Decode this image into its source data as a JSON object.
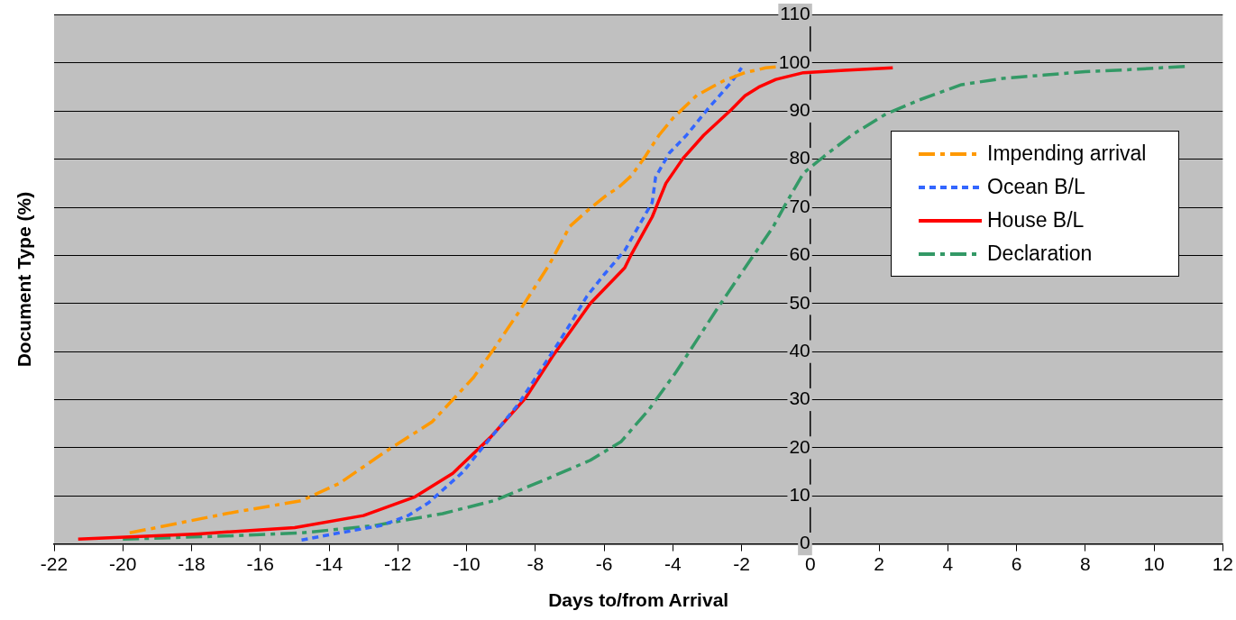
{
  "chart_data": {
    "type": "line",
    "xlabel": "Days to/from Arrival",
    "ylabel": "Document Type (%)",
    "xlim": [
      -22,
      12
    ],
    "xticks": [
      -22,
      -20,
      -18,
      -16,
      -14,
      -12,
      -10,
      -8,
      -6,
      -4,
      -2,
      0,
      2,
      4,
      6,
      8,
      10,
      12
    ],
    "ylim": [
      0,
      110
    ],
    "yticks": [
      0,
      10,
      20,
      30,
      40,
      50,
      60,
      70,
      80,
      90,
      100,
      110
    ],
    "grid": "y",
    "legend": "right",
    "marker": "none",
    "series": [
      {
        "name": "Impending arrival",
        "color": "#ff9900",
        "line_style": "dashed",
        "x": [
          -19.8,
          -18.6,
          -17,
          -14.8,
          -13.7,
          -12.4,
          -11,
          -9.8,
          -9.2,
          -8.5,
          -7.6,
          -7,
          -6.5,
          -5.9,
          -5.6,
          -5.2,
          -4.8,
          -4.4,
          -4,
          -3.3,
          -2.5,
          -1.9,
          -1.3,
          -1
        ],
        "values": [
          2.3,
          4,
          6.3,
          9,
          12.6,
          19,
          25.4,
          34.6,
          40.6,
          48,
          58,
          66,
          69.2,
          72.7,
          74,
          76.6,
          80.6,
          85,
          88.5,
          93.3,
          96.4,
          98,
          99,
          99.2
        ]
      },
      {
        "name": "Ocean B/L",
        "color": "#3366ff",
        "line_style": "dotted",
        "x": [
          -14.8,
          -13.7,
          -12.5,
          -11.7,
          -11.1,
          -10.1,
          -9.7,
          -8.5,
          -7.4,
          -6.9,
          -6.5,
          -6,
          -5.4,
          -5,
          -4.6,
          -4.5,
          -4.1,
          -3.6,
          -3,
          -2.3,
          -2
        ],
        "values": [
          0.8,
          2.3,
          3.8,
          5.9,
          8.6,
          15,
          18.6,
          29,
          41,
          46.7,
          51.5,
          56,
          61,
          66,
          71,
          76.3,
          81.3,
          85,
          90.3,
          96,
          99
        ]
      },
      {
        "name": "House B/L",
        "color": "#ff0000",
        "line_style": "solid",
        "x": [
          -21.3,
          -17.8,
          -15,
          -13,
          -11.5,
          -10.4,
          -9.3,
          -8.3,
          -7.5,
          -6.4,
          -5.4,
          -5.2,
          -4.6,
          -4.2,
          -3.7,
          -3.1,
          -2.3,
          -1.9,
          -1.5,
          -1,
          -0.2,
          1,
          2.4
        ],
        "values": [
          1,
          2.1,
          3.4,
          5.9,
          9.8,
          14.7,
          22.2,
          30.2,
          39,
          50,
          57.4,
          60.3,
          68,
          75,
          80.2,
          85,
          90.3,
          93.2,
          95,
          96.6,
          98,
          98.5,
          99
        ]
      },
      {
        "name": "Declaration",
        "color": "#339966",
        "line_style": "dashed",
        "x": [
          -20,
          -16.8,
          -14.8,
          -12.7,
          -10.7,
          -9.2,
          -7.7,
          -6.4,
          -5.8,
          -5.5,
          -4.7,
          -3.9,
          -2.7,
          -1.7,
          -1.1,
          -0.7,
          -0.2,
          0.4,
          1.2,
          2.2,
          3.2,
          4.4,
          5.6,
          6.8,
          8,
          9.2,
          10.9
        ],
        "values": [
          1,
          1.7,
          2.3,
          3.8,
          6.3,
          9,
          13.4,
          17.4,
          20,
          21.3,
          27.9,
          35.8,
          49,
          59.5,
          65.7,
          70.9,
          77.1,
          80.6,
          85,
          89.4,
          92.4,
          95.5,
          96.8,
          97.5,
          98.2,
          98.6,
          99.3
        ]
      }
    ]
  }
}
